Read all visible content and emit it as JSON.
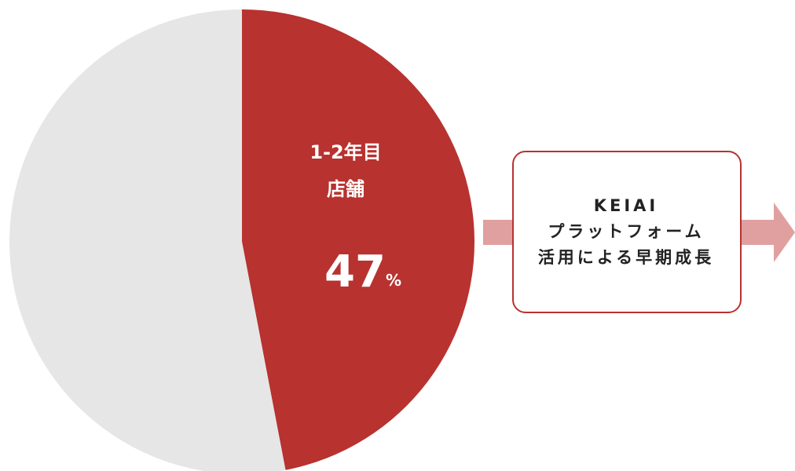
{
  "chart_data": {
    "type": "pie",
    "categories": [
      "1-2年目\n店舗",
      null
    ],
    "values": [
      47,
      53
    ],
    "value_labels": [
      "47%",
      null
    ],
    "colors": [
      "#b8322f",
      "#e6e6e6"
    ],
    "annotations": [
      "KEIAI",
      "プラットフォーム",
      "活用による早期成長"
    ]
  }
}
